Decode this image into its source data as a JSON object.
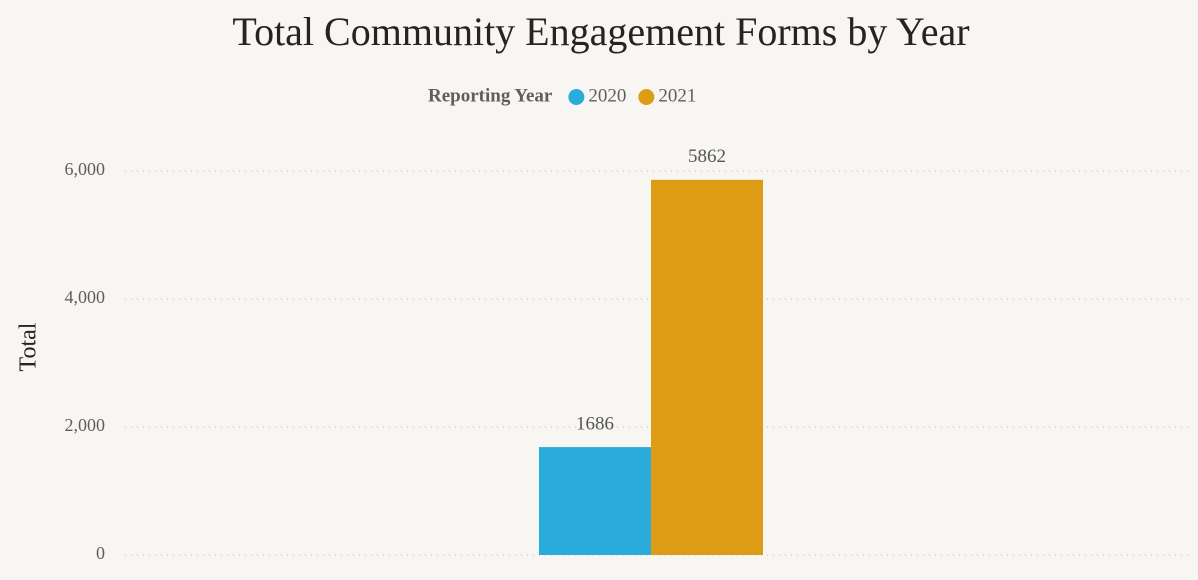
{
  "chart_data": {
    "type": "bar",
    "title": "Total Community Engagement Forms by Year",
    "legend_title": "Reporting Year",
    "y_label": "Total",
    "categories": [
      null
    ],
    "series": [
      {
        "name": "2020",
        "color": "#29abdb",
        "values": [
          1686
        ]
      },
      {
        "name": "2021",
        "color": "#dd9c14",
        "values": [
          5862
        ]
      }
    ],
    "ylim": [
      0,
      6000
    ],
    "yticks": [
      0,
      {
        "value": 2000,
        "label": "2,000"
      },
      {
        "value": 4000,
        "label": "4,000"
      },
      {
        "value": 6000,
        "label": "6,000"
      }
    ],
    "grid": true,
    "legend": "top"
  }
}
